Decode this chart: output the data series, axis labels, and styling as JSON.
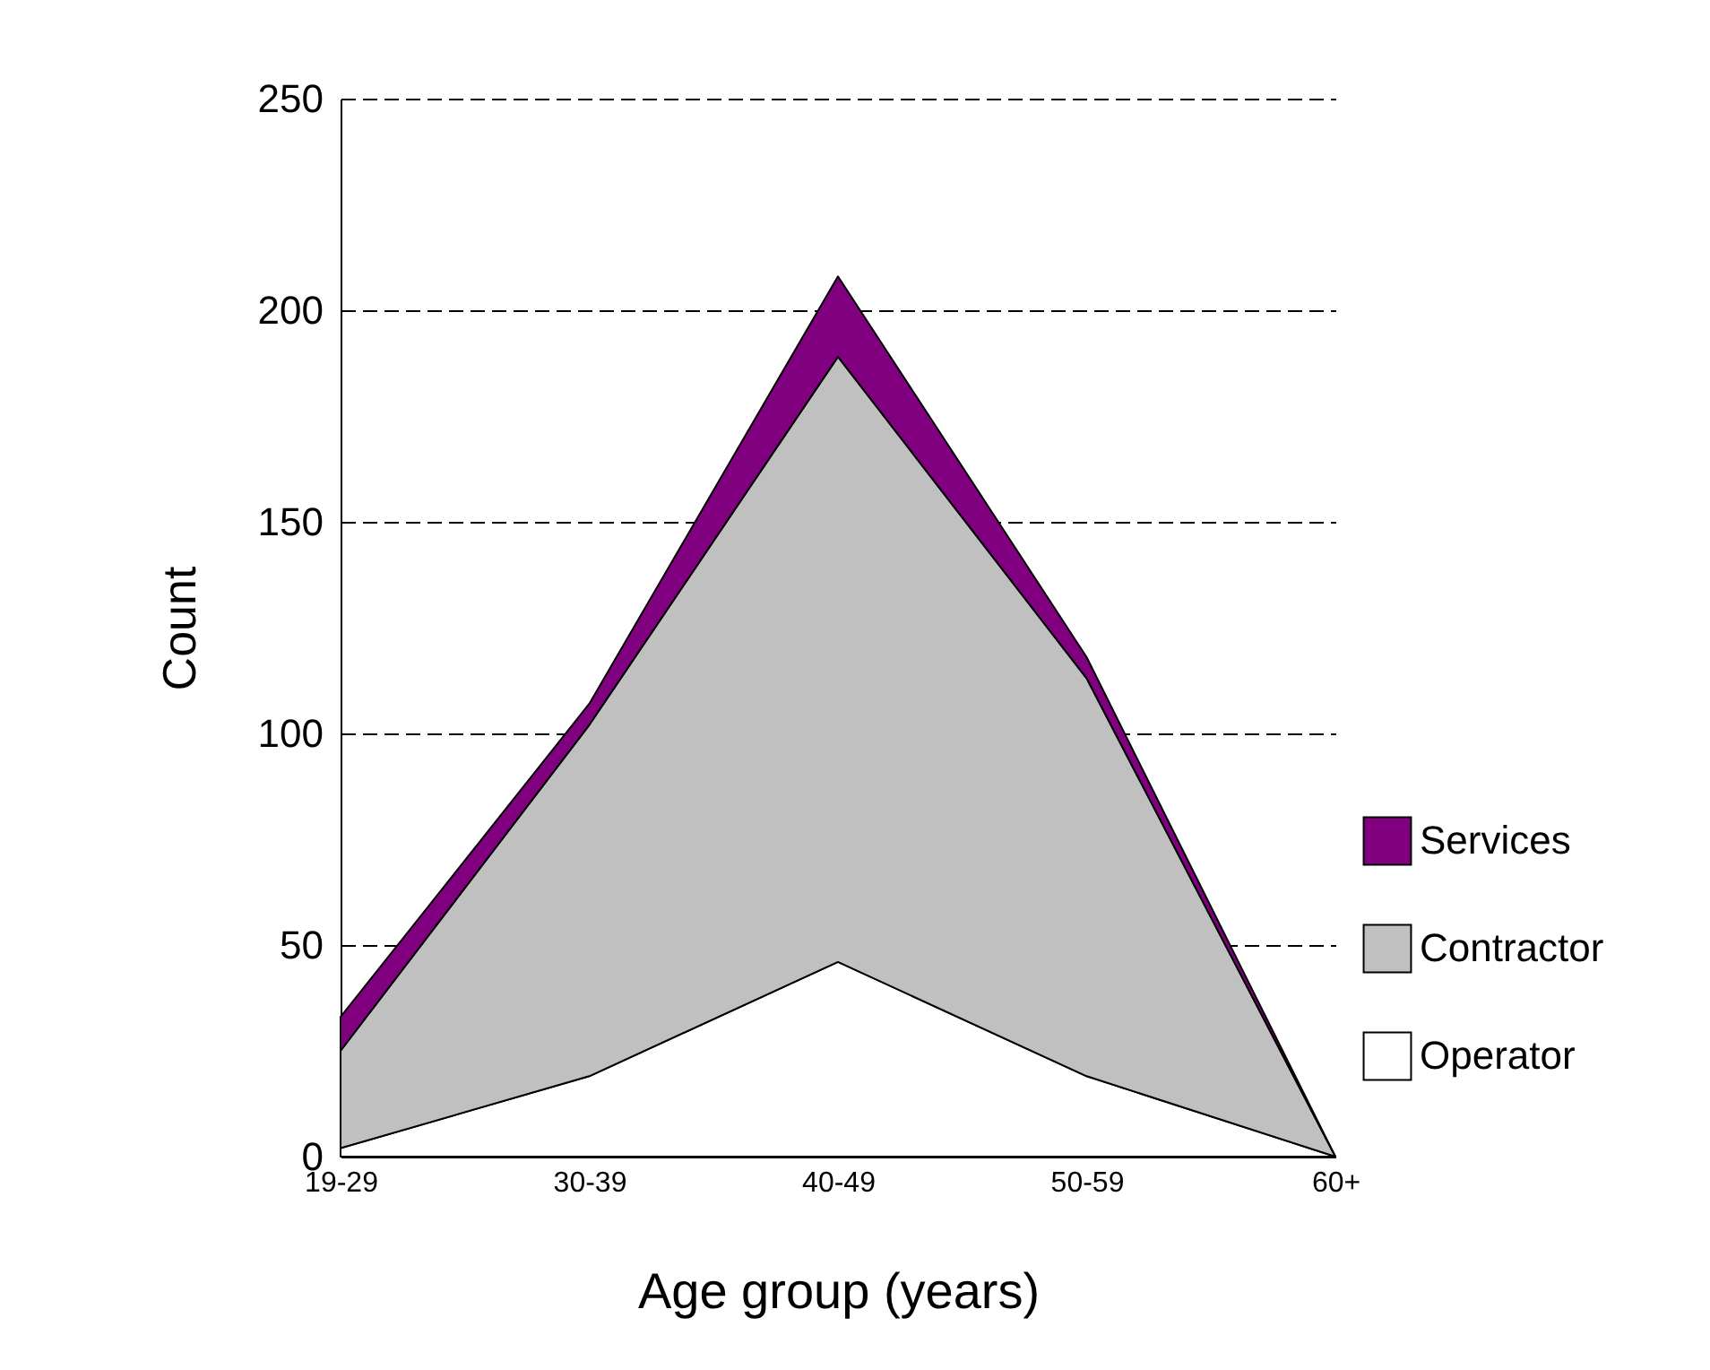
{
  "chart_data": {
    "type": "area",
    "stacked": true,
    "xlabel": "Age group (years)",
    "ylabel": "Count",
    "categories": [
      "19-29",
      "30-39",
      "40-49",
      "50-59",
      "60+"
    ],
    "series": [
      {
        "name": "Operator",
        "color": "#ffffff",
        "values": [
          2,
          19,
          46,
          19,
          0
        ]
      },
      {
        "name": "Contractor",
        "color": "#c0c0c0",
        "values": [
          23,
          83,
          143,
          94,
          0
        ]
      },
      {
        "name": "Services",
        "color": "#800080",
        "values": [
          8,
          5,
          19,
          5,
          0
        ]
      }
    ],
    "ylim": [
      0,
      250
    ],
    "yticks": [
      0,
      50,
      100,
      150,
      200,
      250
    ],
    "grid": "y",
    "legend": "right"
  }
}
